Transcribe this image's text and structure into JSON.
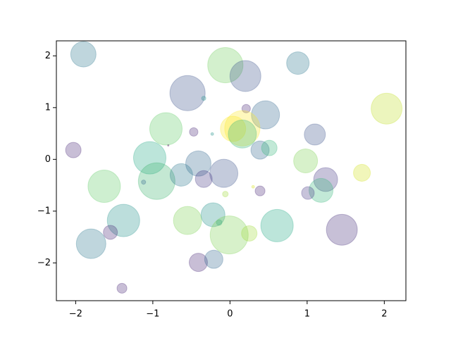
{
  "chart_data": {
    "type": "scatter",
    "x": [
      -1.9,
      -0.06,
      0.2,
      0.88,
      -0.55,
      -0.34,
      0.21,
      0.46,
      2.03,
      0.16,
      0.04,
      -0.83,
      -0.47,
      -0.23,
      0.16,
      1.1,
      -2.03,
      -0.8,
      0.39,
      0.51,
      -1.04,
      -0.41,
      0.98,
      -0.95,
      -0.63,
      -0.08,
      -0.34,
      -1.12,
      -1.63,
      1.24,
      1.71,
      1.18,
      1.01,
      0.39,
      -0.06,
      0.3,
      -1.38,
      -0.55,
      -0.22,
      -0.14,
      -0.01,
      0.25,
      0.61,
      1.45,
      -1.55,
      -1.8,
      -0.41,
      -0.21,
      -1.4
    ],
    "y": [
      2.03,
      1.82,
      1.61,
      1.86,
      1.28,
      1.18,
      0.98,
      0.86,
      0.98,
      0.6,
      0.59,
      0.59,
      0.53,
      0.49,
      0.49,
      0.48,
      0.18,
      0.27,
      0.18,
      0.22,
      0.03,
      -0.08,
      -0.03,
      -0.42,
      -0.3,
      -0.27,
      -0.38,
      -0.44,
      -0.52,
      -0.39,
      -0.26,
      -0.6,
      -0.65,
      -0.61,
      -0.67,
      -0.53,
      -1.18,
      -1.18,
      -1.07,
      -1.22,
      -1.46,
      -1.43,
      -1.28,
      -1.36,
      -1.41,
      -1.63,
      -1.99,
      -1.93,
      -2.49
    ],
    "sizes": [
      670,
      1300,
      1000,
      531,
      1300,
      19,
      75,
      829,
      1000,
      1300,
      670,
      1097,
      75,
      8,
      829,
      467,
      251,
      2,
      350,
      251,
      1097,
      670,
      599,
      1402,
      531,
      829,
      299,
      19,
      1097,
      599,
      299,
      599,
      168,
      102,
      33,
      8,
      1097,
      829,
      599,
      33,
      1512,
      251,
      1097,
      1000,
      207,
      914,
      350,
      350,
      102
    ],
    "colors": [
      "#2a788e",
      "#6ccd5a",
      "#3b528b",
      "#2a788e",
      "#3b528b",
      "#21918c",
      "#482878",
      "#31688e",
      "#c0df25",
      "#fde725",
      "#fde725",
      "#5ec962",
      "#482878",
      "#21918c",
      "#35b779",
      "#3b528b",
      "#482878",
      "#440154",
      "#31688e",
      "#35b779",
      "#22a884",
      "#31688e",
      "#7ad151",
      "#3db26d",
      "#2a788e",
      "#3b528b",
      "#443983",
      "#31688e",
      "#5ec962",
      "#443983",
      "#d0e11c",
      "#35b779",
      "#443983",
      "#482878",
      "#a0da39",
      "#d8e219",
      "#21918c",
      "#7ad151",
      "#21918c",
      "#1f9e89",
      "#7ad151",
      "#a0da39",
      "#22a884",
      "#472d7b",
      "#482878",
      "#2a788e",
      "#482878",
      "#31688e",
      "#482878"
    ],
    "alpha": 0.3,
    "xlim": [
      -2.25,
      2.28
    ],
    "ylim": [
      -2.73,
      2.29
    ],
    "xticks": [
      {
        "value": -2,
        "label": "−2"
      },
      {
        "value": -1,
        "label": "−1"
      },
      0,
      1,
      2
    ],
    "yticks": [
      {
        "value": -2,
        "label": "−2"
      },
      {
        "value": -1,
        "label": "−1"
      },
      0,
      1,
      2
    ],
    "grid": false
  }
}
